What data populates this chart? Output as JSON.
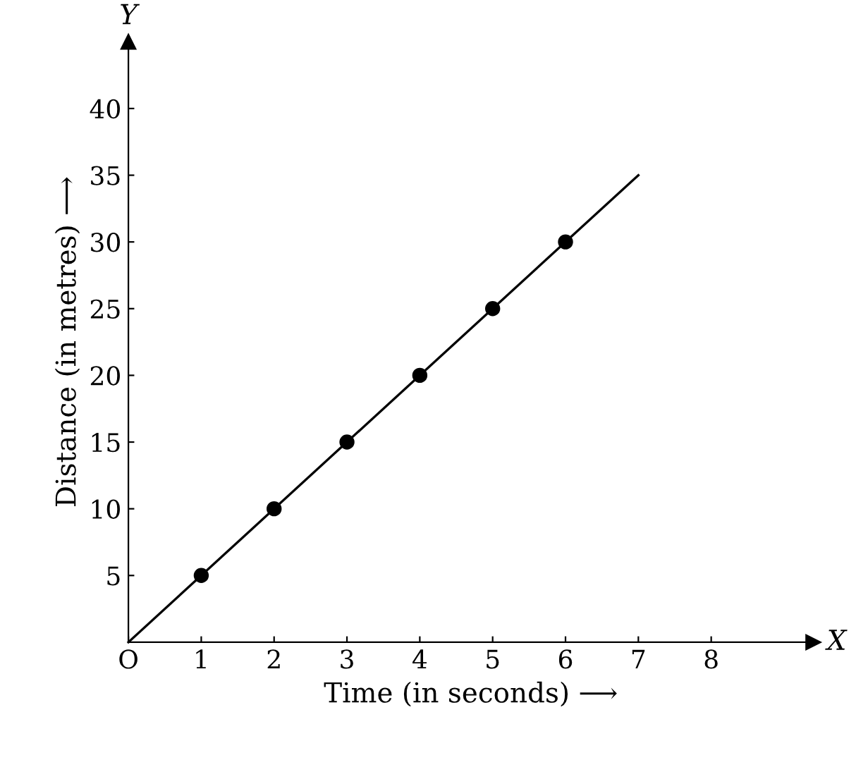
{
  "chart_data": {
    "type": "line",
    "xlabel": "Time (in seconds) ⟶",
    "ylabel": "Distance (in metres) ⟶",
    "series": [
      {
        "color": "#000000",
        "x": [
          0,
          7
        ],
        "values": [
          0,
          35
        ],
        "marker": "none"
      },
      {
        "type": "scatter",
        "color": "#000000",
        "x": [
          1,
          2,
          3,
          4,
          5,
          6
        ],
        "values": [
          5,
          10,
          15,
          20,
          25,
          30
        ],
        "marker": "circle"
      }
    ],
    "xlim": [
      0,
      9.4
    ],
    "ylim": [
      0,
      45
    ],
    "xticks": [
      {
        "value": 0,
        "label": "O"
      },
      1,
      2,
      3,
      4,
      5,
      6,
      7,
      8
    ],
    "yticks": [
      5,
      10,
      15,
      20,
      25,
      30,
      35,
      40
    ],
    "annotations": [
      "X",
      "Y"
    ],
    "grid": false,
    "legend": false
  }
}
